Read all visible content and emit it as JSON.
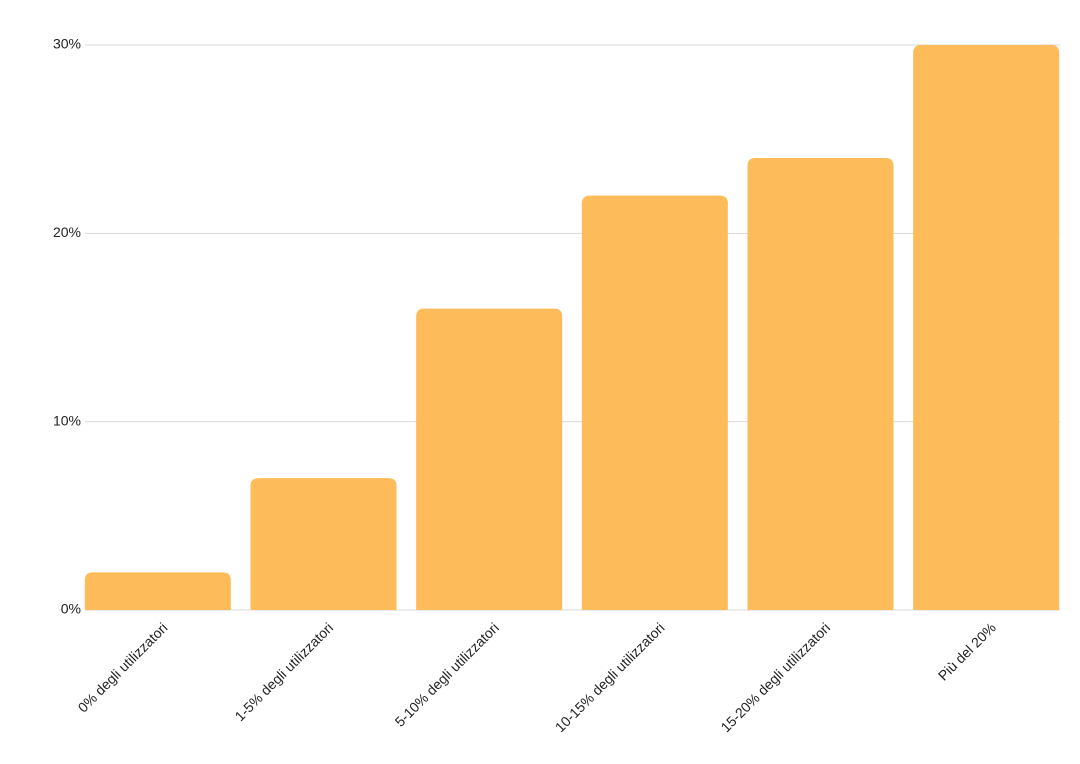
{
  "chart_data": {
    "type": "bar",
    "categories": [
      "0% degli utilizzatori",
      "1-5% degli utilizzatori",
      "5-10% degli utilizzatori",
      "10-15% degli utilizzatori",
      "15-20% degli utilizzatori",
      "Più del 20%"
    ],
    "values": [
      2,
      7,
      16,
      22,
      24,
      30
    ],
    "color": "#fdbb5a",
    "ylim": [
      0,
      30
    ],
    "yticks": [
      {
        "value": 0,
        "label": "0%"
      },
      {
        "value": 10,
        "label": "10%"
      },
      {
        "value": 20,
        "label": "20%"
      },
      {
        "value": 30,
        "label": "30%"
      }
    ],
    "grid": true
  }
}
